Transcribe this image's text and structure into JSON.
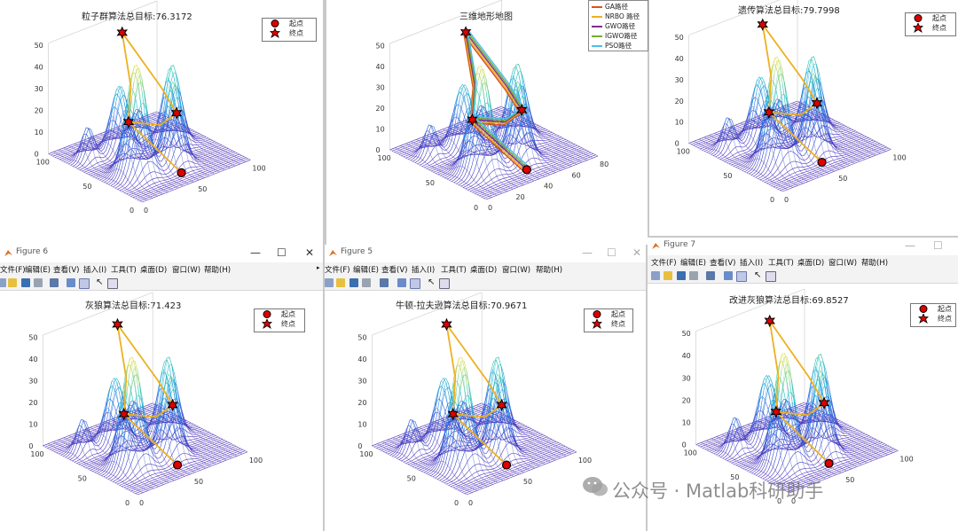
{
  "panels": [
    {
      "title": "粒子群算法总目标:76.3172"
    },
    {
      "title": "三维地形地图"
    },
    {
      "title": "遗传算法总目标:79.7998"
    },
    {
      "window_title": "Figure 6",
      "title": "灰狼算法总目标:71.423"
    },
    {
      "window_title": "Figure 5",
      "title": "牛顿-拉夫逊算法总目标:70.9671"
    },
    {
      "window_title": "Figure 7",
      "title": "改进灰狼算法总目标:69.8527"
    }
  ],
  "legend": {
    "start": "起点",
    "end": "终点"
  },
  "route_legend": [
    {
      "label": "GA路径",
      "color": "#d9541a"
    },
    {
      "label": "NRBO 路径",
      "color": "#edb120"
    },
    {
      "label": "GWO路径",
      "color": "#7e2f8e"
    },
    {
      "label": "IGWO路径",
      "color": "#77ac30"
    },
    {
      "label": "PSO路径",
      "color": "#4dbeee"
    }
  ],
  "menu": [
    "文件(F)",
    "编辑(E)",
    "查看(V)",
    "插入(I)",
    "工具(T)",
    "桌面(D)",
    "窗口(W)",
    "帮助(H)"
  ],
  "axes": {
    "z_ticks": [
      "50",
      "40",
      "30",
      "20",
      "10",
      "0"
    ],
    "x_ticks": [
      "100",
      "50",
      "0"
    ],
    "y_ticks": [
      "0",
      "50",
      "100"
    ],
    "y_ticks_detail": [
      "0",
      "20",
      "40",
      "60",
      "80"
    ]
  },
  "watermark": "公众号 · Matlab科研助手",
  "colors": {
    "path": "#edb120",
    "start": "#e00000",
    "terrain_low": "#4b2fb8",
    "terrain_high": "#f0e020"
  }
}
